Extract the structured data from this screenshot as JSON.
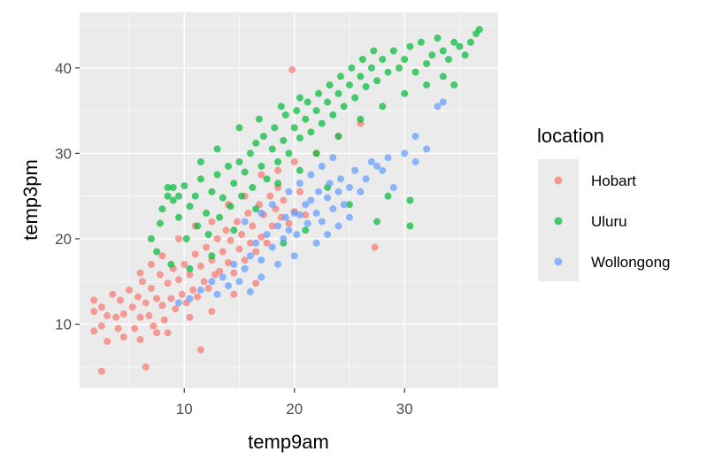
{
  "chart_data": {
    "type": "scatter",
    "xlabel": "temp9am",
    "ylabel": "temp3pm",
    "xlim": [
      0.5,
      38.5
    ],
    "ylim": [
      2.5,
      46.5
    ],
    "x_ticks": [
      10,
      20,
      30
    ],
    "y_ticks": [
      10,
      20,
      30,
      40
    ],
    "grid": true,
    "point_alpha": 0.7,
    "legend": {
      "title": "location",
      "placement": "right",
      "entries": [
        "Hobart",
        "Uluru",
        "Wollongong"
      ]
    },
    "colors": {
      "Hobart": "#F8766D",
      "Uluru": "#00BA38",
      "Wollongong": "#619CFF",
      "panel": "#EBEBEB",
      "grid": "#FFFFFF"
    },
    "series": [
      {
        "name": "Hobart",
        "points": [
          [
            2.5,
            4.5
          ],
          [
            6.5,
            5.0
          ],
          [
            11.5,
            7.0
          ],
          [
            19.8,
            39.8
          ],
          [
            27.3,
            19.0
          ],
          [
            1.8,
            12.8
          ],
          [
            1.8,
            11.5
          ],
          [
            2.5,
            9.8
          ],
          [
            1.8,
            9.2
          ],
          [
            2.5,
            12.0
          ],
          [
            3.0,
            11.0
          ],
          [
            3.5,
            13.5
          ],
          [
            3.8,
            10.8
          ],
          [
            4.0,
            9.5
          ],
          [
            4.2,
            12.8
          ],
          [
            4.5,
            11.2
          ],
          [
            5.0,
            14.0
          ],
          [
            5.3,
            12.0
          ],
          [
            5.5,
            9.5
          ],
          [
            5.8,
            13.2
          ],
          [
            6.0,
            10.8
          ],
          [
            6.2,
            15.0
          ],
          [
            6.5,
            12.5
          ],
          [
            6.8,
            11.0
          ],
          [
            7.0,
            14.2
          ],
          [
            7.2,
            9.8
          ],
          [
            7.5,
            13.0
          ],
          [
            7.8,
            15.8
          ],
          [
            8.0,
            12.2
          ],
          [
            8.2,
            10.5
          ],
          [
            8.5,
            14.8
          ],
          [
            8.8,
            13.0
          ],
          [
            9.0,
            16.5
          ],
          [
            9.2,
            11.8
          ],
          [
            9.5,
            15.2
          ],
          [
            9.8,
            13.5
          ],
          [
            10.0,
            17.0
          ],
          [
            10.2,
            12.5
          ],
          [
            10.5,
            15.8
          ],
          [
            10.8,
            14.0
          ],
          [
            11.0,
            18.2
          ],
          [
            11.2,
            13.2
          ],
          [
            11.5,
            16.8
          ],
          [
            11.8,
            15.0
          ],
          [
            12.0,
            19.0
          ],
          [
            12.2,
            14.2
          ],
          [
            12.5,
            17.5
          ],
          [
            12.8,
            15.8
          ],
          [
            13.0,
            20.0
          ],
          [
            13.2,
            16.2
          ],
          [
            13.5,
            18.5
          ],
          [
            13.8,
            21.0
          ],
          [
            14.0,
            17.2
          ],
          [
            14.2,
            19.8
          ],
          [
            14.5,
            16.0
          ],
          [
            14.8,
            22.0
          ],
          [
            15.0,
            18.8
          ],
          [
            15.2,
            20.5
          ],
          [
            15.5,
            17.5
          ],
          [
            15.8,
            23.0
          ],
          [
            16.0,
            19.5
          ],
          [
            16.2,
            21.5
          ],
          [
            16.5,
            18.5
          ],
          [
            16.8,
            24.0
          ],
          [
            17.0,
            20.2
          ],
          [
            17.2,
            22.8
          ],
          [
            17.5,
            19.5
          ],
          [
            17.8,
            25.0
          ],
          [
            18.0,
            21.5
          ],
          [
            18.3,
            23.5
          ],
          [
            18.5,
            26.0
          ],
          [
            18.8,
            22.5
          ],
          [
            19.0,
            24.5
          ],
          [
            19.5,
            21.8
          ],
          [
            20.0,
            23.2
          ],
          [
            20.5,
            25.5
          ],
          [
            21.0,
            22.8
          ],
          [
            6.0,
            16.0
          ],
          [
            7.0,
            17.0
          ],
          [
            8.0,
            18.0
          ],
          [
            9.5,
            20.0
          ],
          [
            11.0,
            21.5
          ],
          [
            12.5,
            22.0
          ],
          [
            14.0,
            24.0
          ],
          [
            15.5,
            25.0
          ],
          [
            17.0,
            27.5
          ],
          [
            18.5,
            28.0
          ],
          [
            20.0,
            29.0
          ],
          [
            22.0,
            30.0
          ],
          [
            24.0,
            32.0
          ],
          [
            26.0,
            33.5
          ],
          [
            8.5,
            9.0
          ],
          [
            10.5,
            10.8
          ],
          [
            12.5,
            11.5
          ],
          [
            14.5,
            13.5
          ],
          [
            16.5,
            14.8
          ],
          [
            3.0,
            8.0
          ],
          [
            4.5,
            8.5
          ],
          [
            6.0,
            8.2
          ],
          [
            7.5,
            9.0
          ]
        ]
      },
      {
        "name": "Uluru",
        "points": [
          [
            7.8,
            21.8
          ],
          [
            8.0,
            23.5
          ],
          [
            8.5,
            26.0
          ],
          [
            9.0,
            24.5
          ],
          [
            9.5,
            22.5
          ],
          [
            10.0,
            26.2
          ],
          [
            10.2,
            20.0
          ],
          [
            10.5,
            23.8
          ],
          [
            11.0,
            25.0
          ],
          [
            11.2,
            21.5
          ],
          [
            11.5,
            27.0
          ],
          [
            12.0,
            23.0
          ],
          [
            12.2,
            20.5
          ],
          [
            12.5,
            25.5
          ],
          [
            13.0,
            27.5
          ],
          [
            13.2,
            22.5
          ],
          [
            13.5,
            24.8
          ],
          [
            14.0,
            28.5
          ],
          [
            14.2,
            23.8
          ],
          [
            14.5,
            26.5
          ],
          [
            15.0,
            29.0
          ],
          [
            15.2,
            25.0
          ],
          [
            15.5,
            27.8
          ],
          [
            16.0,
            30.0
          ],
          [
            16.2,
            26.0
          ],
          [
            16.5,
            31.2
          ],
          [
            17.0,
            28.5
          ],
          [
            17.2,
            32.0
          ],
          [
            17.5,
            27.0
          ],
          [
            18.0,
            30.5
          ],
          [
            18.2,
            33.0
          ],
          [
            18.5,
            29.0
          ],
          [
            19.0,
            31.5
          ],
          [
            19.2,
            34.5
          ],
          [
            19.5,
            30.0
          ],
          [
            20.0,
            33.0
          ],
          [
            20.2,
            35.0
          ],
          [
            20.5,
            31.8
          ],
          [
            21.0,
            34.0
          ],
          [
            21.2,
            36.0
          ],
          [
            21.5,
            32.5
          ],
          [
            22.0,
            35.0
          ],
          [
            22.2,
            37.0
          ],
          [
            22.5,
            33.5
          ],
          [
            23.0,
            36.0
          ],
          [
            23.2,
            38.0
          ],
          [
            23.5,
            34.5
          ],
          [
            24.0,
            37.0
          ],
          [
            24.2,
            39.0
          ],
          [
            24.5,
            35.5
          ],
          [
            25.0,
            38.0
          ],
          [
            25.2,
            40.0
          ],
          [
            25.5,
            36.5
          ],
          [
            26.0,
            39.0
          ],
          [
            26.2,
            41.0
          ],
          [
            26.5,
            37.8
          ],
          [
            27.0,
            40.0
          ],
          [
            27.2,
            42.0
          ],
          [
            27.5,
            38.5
          ],
          [
            28.0,
            41.0
          ],
          [
            28.5,
            39.5
          ],
          [
            29.0,
            42.0
          ],
          [
            29.5,
            40.0
          ],
          [
            30.0,
            41.0
          ],
          [
            30.5,
            42.5
          ],
          [
            31.0,
            39.5
          ],
          [
            31.5,
            43.0
          ],
          [
            32.0,
            40.5
          ],
          [
            32.5,
            41.5
          ],
          [
            33.0,
            43.5
          ],
          [
            33.5,
            42.0
          ],
          [
            34.0,
            41.0
          ],
          [
            34.5,
            43.0
          ],
          [
            35.0,
            42.5
          ],
          [
            35.5,
            41.5
          ],
          [
            36.0,
            43.0
          ],
          [
            36.5,
            44.0
          ],
          [
            36.8,
            44.5
          ],
          [
            34.5,
            38.0
          ],
          [
            7.5,
            18.5
          ],
          [
            7.0,
            20.0
          ],
          [
            8.8,
            17.0
          ],
          [
            10.5,
            16.5
          ],
          [
            9.5,
            25.0
          ],
          [
            11.5,
            29.0
          ],
          [
            13.0,
            30.5
          ],
          [
            15.0,
            33.0
          ],
          [
            16.8,
            34.0
          ],
          [
            18.8,
            35.5
          ],
          [
            20.5,
            36.5
          ],
          [
            12.5,
            18.0
          ],
          [
            14.5,
            21.0
          ],
          [
            16.5,
            23.5
          ],
          [
            18.5,
            26.5
          ],
          [
            20.5,
            28.0
          ],
          [
            22.0,
            30.0
          ],
          [
            24.0,
            32.0
          ],
          [
            26.0,
            34.0
          ],
          [
            28.0,
            35.5
          ],
          [
            30.0,
            37.0
          ],
          [
            32.0,
            38.0
          ],
          [
            33.5,
            39.0
          ],
          [
            25.0,
            24.0
          ],
          [
            27.5,
            22.0
          ],
          [
            30.5,
            21.5
          ],
          [
            30.5,
            24.5
          ],
          [
            28.5,
            25.0
          ],
          [
            21.0,
            21.0
          ],
          [
            19.0,
            19.5
          ],
          [
            23.0,
            26.0
          ],
          [
            8.5,
            25.0
          ],
          [
            9.0,
            26.0
          ]
        ]
      },
      {
        "name": "Wollongong",
        "points": [
          [
            9.5,
            12.5
          ],
          [
            10.5,
            13.0
          ],
          [
            11.5,
            14.0
          ],
          [
            12.5,
            15.0
          ],
          [
            13.5,
            15.5
          ],
          [
            14.5,
            17.0
          ],
          [
            15.5,
            16.5
          ],
          [
            16.0,
            18.0
          ],
          [
            16.5,
            19.5
          ],
          [
            17.0,
            17.5
          ],
          [
            17.5,
            20.5
          ],
          [
            18.0,
            19.0
          ],
          [
            18.5,
            21.5
          ],
          [
            19.0,
            20.0
          ],
          [
            19.2,
            22.5
          ],
          [
            19.5,
            21.0
          ],
          [
            20.0,
            23.0
          ],
          [
            20.2,
            20.5
          ],
          [
            20.5,
            22.8
          ],
          [
            21.0,
            24.0
          ],
          [
            21.2,
            21.8
          ],
          [
            21.5,
            24.5
          ],
          [
            22.0,
            23.0
          ],
          [
            22.2,
            25.5
          ],
          [
            22.5,
            22.0
          ],
          [
            23.0,
            24.8
          ],
          [
            23.2,
            26.5
          ],
          [
            23.5,
            23.5
          ],
          [
            24.0,
            25.5
          ],
          [
            24.2,
            27.0
          ],
          [
            24.5,
            24.0
          ],
          [
            25.0,
            26.0
          ],
          [
            25.5,
            28.0
          ],
          [
            26.0,
            25.5
          ],
          [
            26.5,
            27.0
          ],
          [
            27.0,
            29.0
          ],
          [
            27.5,
            28.5
          ],
          [
            28.0,
            28.0
          ],
          [
            28.5,
            29.5
          ],
          [
            29.0,
            26.0
          ],
          [
            30.0,
            30.0
          ],
          [
            31.0,
            29.0
          ],
          [
            31.0,
            32.0
          ],
          [
            32.0,
            30.5
          ],
          [
            33.0,
            35.5
          ],
          [
            33.5,
            36.0
          ],
          [
            18.0,
            24.0
          ],
          [
            19.5,
            25.5
          ],
          [
            20.5,
            26.5
          ],
          [
            21.5,
            27.5
          ],
          [
            22.5,
            28.5
          ],
          [
            23.5,
            29.5
          ],
          [
            15.5,
            22.0
          ],
          [
            17.0,
            23.0
          ],
          [
            22.0,
            19.5
          ],
          [
            23.0,
            20.5
          ],
          [
            24.0,
            21.5
          ],
          [
            25.0,
            22.5
          ],
          [
            18.5,
            17.0
          ],
          [
            20.0,
            18.0
          ],
          [
            13.0,
            13.5
          ],
          [
            14.0,
            14.5
          ],
          [
            17.0,
            15.5
          ],
          [
            16.0,
            13.8
          ],
          [
            15.0,
            15.0
          ]
        ]
      }
    ]
  }
}
